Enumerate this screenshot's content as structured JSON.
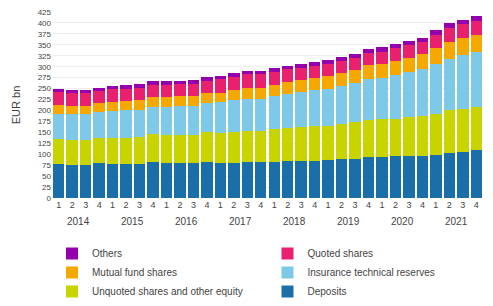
{
  "chart_data": {
    "type": "bar",
    "stacked": true,
    "ylabel": "EUR bn",
    "categories": [
      "1",
      "2",
      "3",
      "4",
      "1",
      "2",
      "3",
      "4",
      "1",
      "2",
      "3",
      "4",
      "1",
      "2",
      "3",
      "4",
      "1",
      "2",
      "3",
      "4",
      "1",
      "2",
      "3",
      "4",
      "1",
      "2",
      "3",
      "4",
      "1",
      "2",
      "3",
      "4"
    ],
    "annotations": [
      {
        "text": "2014",
        "x": 1.5
      },
      {
        "text": "2015",
        "x": 5.5
      },
      {
        "text": "2016",
        "x": 9.5
      },
      {
        "text": "2017",
        "x": 13.5
      },
      {
        "text": "2018",
        "x": 17.5
      },
      {
        "text": "2019",
        "x": 21.5
      },
      {
        "text": "2020",
        "x": 25.5
      },
      {
        "text": "2021",
        "x": 29.5
      }
    ],
    "series": [
      {
        "name": "Deposits",
        "color": "#1a6fa8",
        "values": [
          77,
          76,
          76,
          80,
          78,
          78,
          78,
          82,
          80,
          80,
          80,
          82,
          81,
          81,
          82,
          82,
          83,
          84,
          84,
          84,
          86,
          88,
          90,
          93,
          94,
          95,
          96,
          97,
          99,
          102,
          105,
          110
        ]
      },
      {
        "name": "Unquoted shares and other equity",
        "color": "#c8d400",
        "values": [
          57,
          57,
          57,
          57,
          60,
          60,
          62,
          64,
          65,
          65,
          65,
          68,
          68,
          70,
          72,
          72,
          75,
          76,
          78,
          80,
          79,
          81,
          84,
          86,
          86,
          86,
          88,
          90,
          94,
          98,
          98,
          98
        ]
      },
      {
        "name": "Insurance technical reserves",
        "color": "#7ec8e8",
        "values": [
          58,
          58,
          58,
          59,
          60,
          62,
          62,
          63,
          64,
          65,
          66,
          68,
          70,
          72,
          73,
          73,
          75,
          78,
          80,
          82,
          84,
          87,
          89,
          92,
          94,
          99,
          104,
          107,
          113,
          118,
          123,
          126
        ]
      },
      {
        "name": "Mutual fund shares",
        "color": "#f5a800",
        "values": [
          20,
          20,
          20,
          20,
          22,
          22,
          22,
          22,
          22,
          22,
          22,
          22,
          22,
          24,
          24,
          24,
          26,
          28,
          28,
          28,
          30,
          30,
          30,
          32,
          32,
          32,
          33,
          34,
          37,
          39,
          39,
          39
        ]
      },
      {
        "name": "Quoted shares",
        "color": "#e8206e",
        "values": [
          30,
          28,
          28,
          28,
          28,
          28,
          28,
          28,
          28,
          28,
          28,
          28,
          30,
          30,
          32,
          32,
          30,
          28,
          28,
          28,
          28,
          28,
          28,
          28,
          28,
          30,
          28,
          28,
          30,
          32,
          32,
          32
        ]
      },
      {
        "name": "Others",
        "color": "#9400ae",
        "values": [
          8,
          8,
          8,
          8,
          8,
          8,
          8,
          8,
          8,
          8,
          8,
          8,
          8,
          8,
          8,
          8,
          8,
          8,
          8,
          8,
          8,
          8,
          8,
          10,
          10,
          10,
          10,
          10,
          10,
          10,
          10,
          12
        ]
      }
    ],
    "ylim": [
      0,
      425
    ],
    "yticks": [
      0,
      25,
      50,
      75,
      100,
      125,
      150,
      175,
      200,
      225,
      250,
      275,
      300,
      325,
      350,
      375,
      400,
      425
    ],
    "grid": true,
    "legend": "bottom"
  }
}
